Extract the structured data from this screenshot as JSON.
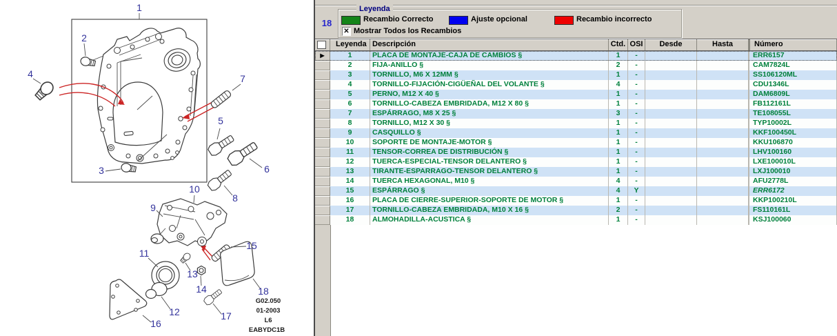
{
  "diagram": {
    "callouts": [
      "1",
      "2",
      "3",
      "4",
      "5",
      "6",
      "7",
      "8",
      "9",
      "10",
      "11",
      "12",
      "13",
      "14",
      "15",
      "16",
      "17",
      "18"
    ],
    "footer": [
      "G02.050",
      "01-2003",
      "L6",
      "EABYDC1B"
    ]
  },
  "legend": {
    "title": "Leyenda",
    "page_number": "18",
    "items": [
      {
        "label": "Recambio Correcto",
        "color": "#148418"
      },
      {
        "label": "Ajuste opcional",
        "color": "#0000f0"
      },
      {
        "label": "Recambio incorrecto",
        "color": "#ee0000"
      }
    ],
    "show_all_label": "Mostrar Todos los Recambios",
    "show_all_checked": true
  },
  "icons": {
    "checkbox_checked": "✕",
    "row_selector": "▶"
  },
  "table": {
    "headers": [
      "Leyenda",
      "Descripción",
      "Ctd.",
      "OSI",
      "Desde",
      "Hasta",
      "Número"
    ],
    "rows": [
      {
        "leyenda": "1",
        "descripcion": "PLACA DE MONTAJE-CAJA DE CAMBIOS §",
        "ctd": "1",
        "osi": "-",
        "desde": "",
        "hasta": "",
        "numero": "ERR6157",
        "selected": true
      },
      {
        "leyenda": "2",
        "descripcion": "FIJA-ANILLO §",
        "ctd": "2",
        "osi": "-",
        "desde": "",
        "hasta": "",
        "numero": "CAM7824L"
      },
      {
        "leyenda": "3",
        "descripcion": "TORNILLO, M6 X 12MM §",
        "ctd": "1",
        "osi": "-",
        "desde": "",
        "hasta": "",
        "numero": "SS106120ML"
      },
      {
        "leyenda": "4",
        "descripcion": "TORNILLO-FIJACIÓN-CIGÜEÑAL DEL VOLANTE §",
        "ctd": "4",
        "osi": "-",
        "desde": "",
        "hasta": "",
        "numero": "CDU1346L"
      },
      {
        "leyenda": "5",
        "descripcion": "PERNO, M12 X 40 §",
        "ctd": "1",
        "osi": "-",
        "desde": "",
        "hasta": "",
        "numero": "DAM6809L"
      },
      {
        "leyenda": "6",
        "descripcion": "TORNILLO-CABEZA EMBRIDADA, M12 X 80 §",
        "ctd": "1",
        "osi": "-",
        "desde": "",
        "hasta": "",
        "numero": "FB112161L"
      },
      {
        "leyenda": "7",
        "descripcion": "ESPÁRRAGO, M8 X 25 §",
        "ctd": "3",
        "osi": "-",
        "desde": "",
        "hasta": "",
        "numero": "TE108055L"
      },
      {
        "leyenda": "8",
        "descripcion": "TORNILLO, M12 X 30 §",
        "ctd": "1",
        "osi": "-",
        "desde": "",
        "hasta": "",
        "numero": "TYP10002L"
      },
      {
        "leyenda": "9",
        "descripcion": "CASQUILLO §",
        "ctd": "1",
        "osi": "-",
        "desde": "",
        "hasta": "",
        "numero": "KKF100450L"
      },
      {
        "leyenda": "10",
        "descripcion": "SOPORTE DE MONTAJE-MOTOR §",
        "ctd": "1",
        "osi": "-",
        "desde": "",
        "hasta": "",
        "numero": "KKU106870"
      },
      {
        "leyenda": "11",
        "descripcion": "TENSOR-CORREA DE DISTRIBUCIÓN §",
        "ctd": "1",
        "osi": "-",
        "desde": "",
        "hasta": "",
        "numero": "LHV100160"
      },
      {
        "leyenda": "12",
        "descripcion": "TUERCA-ESPECIAL-TENSOR DELANTERO §",
        "ctd": "1",
        "osi": "-",
        "desde": "",
        "hasta": "",
        "numero": "LXE100010L"
      },
      {
        "leyenda": "13",
        "descripcion": "TIRANTE-ESPARRAGO-TENSOR DELANTERO §",
        "ctd": "1",
        "osi": "-",
        "desde": "",
        "hasta": "",
        "numero": "LXJ100010"
      },
      {
        "leyenda": "14",
        "descripcion": "TUERCA HEXAGONAL, M10 §",
        "ctd": "4",
        "osi": "-",
        "desde": "",
        "hasta": "",
        "numero": "AFU2778L"
      },
      {
        "leyenda": "15",
        "descripcion": "ESPÁRRAGO §",
        "ctd": "4",
        "osi": "Y",
        "desde": "",
        "hasta": "",
        "numero": "ERR6172",
        "numero_italic": true
      },
      {
        "leyenda": "16",
        "descripcion": "PLACA DE CIERRE-SUPERIOR-SOPORTE DE MOTOR §",
        "ctd": "1",
        "osi": "-",
        "desde": "",
        "hasta": "",
        "numero": "KKP100210L"
      },
      {
        "leyenda": "17",
        "descripcion": "TORNILLO-CABEZA EMBRIDADA, M10 X 16 §",
        "ctd": "2",
        "osi": "-",
        "desde": "",
        "hasta": "",
        "numero": "FS110161L"
      },
      {
        "leyenda": "18",
        "descripcion": "ALMOHADILLA-ACUSTICA §",
        "ctd": "1",
        "osi": "-",
        "desde": "",
        "hasta": "",
        "numero": "KSJ100060"
      }
    ]
  },
  "colors": {
    "panel_gray": "#d4d0c8",
    "row_alt_blue": "#cfe2f6",
    "grid_text_green": "#00803c",
    "legend_title_navy": "#000080",
    "page_number_blue": "#2626cc",
    "callout_blue": "#32329b",
    "leader_red": "#cc2525"
  }
}
